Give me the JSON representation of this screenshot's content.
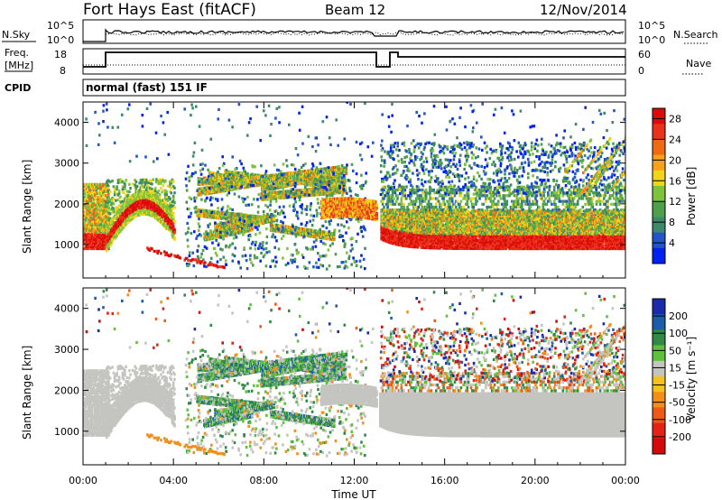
{
  "header": {
    "station": "Fort Hays East (fitACF)",
    "beam": "Beam 12",
    "date": "12/Nov/2014"
  },
  "top_panels": {
    "nsky_label": "N.Sky",
    "nsky_ticks": [
      "10^5",
      "10^0"
    ],
    "nsearch_label": "N.Search",
    "nsearch_ticks": [
      "10^5",
      "10^0"
    ],
    "freq_label_line1": "Freq.",
    "freq_label_line2": "[MHz]",
    "freq_ticks": [
      "18",
      "8"
    ],
    "nave_label": "Nave",
    "nave_ticks": [
      "60",
      "0"
    ],
    "cpid_label": "CPID",
    "cpid_value": "normal (fast) 151 IF"
  },
  "colors": {
    "power_scale": [
      "#0022ee",
      "#2355c8",
      "#3d8a6a",
      "#4ea04a",
      "#7fc23c",
      "#f2d41a",
      "#f5a21a",
      "#f06a14",
      "#e8331a",
      "#dd0a0a"
    ],
    "velocity_scale": [
      "#1a2aa8",
      "#1d5ca8",
      "#2e8a46",
      "#5ec03c",
      "#c4c4c0",
      "#f5c21c",
      "#f28f1c",
      "#ed5a18",
      "#e42316",
      "#d40a0a"
    ]
  },
  "chart_data": [
    {
      "type": "heatmap",
      "panel": "power",
      "ylabel": "Slant Range [km]",
      "xlabel": "Time UT",
      "x_ticks": [
        "00:00",
        "04:00",
        "08:00",
        "12:00",
        "16:00",
        "20:00",
        "00:00"
      ],
      "y_ticks": [
        1000,
        2000,
        3000,
        4000
      ],
      "ylim": [
        180,
        4500
      ],
      "xlim_hours": [
        0,
        24
      ],
      "colorbar_label": "Power [dB]",
      "colorbar_ticks": [
        4,
        8,
        12,
        16,
        20,
        24,
        28
      ],
      "colorbar_range": [
        0,
        30
      ],
      "features": [
        {
          "kind": "band",
          "t": [
            0.0,
            1.1
          ],
          "range_km": [
            900,
            2500
          ],
          "level": "strong"
        },
        {
          "kind": "arc",
          "t": [
            1.0,
            4.0
          ],
          "range_km": [
            900,
            2100
          ],
          "level": "strong"
        },
        {
          "kind": "streaks",
          "t": [
            5.0,
            11.5
          ],
          "range_km": [
            500,
            2800
          ],
          "level": "mixed"
        },
        {
          "kind": "arc",
          "t": [
            10.5,
            13.0
          ],
          "range_km": [
            1700,
            2400
          ],
          "level": "moderate"
        },
        {
          "kind": "gap",
          "t": [
            13.0,
            13.1
          ]
        },
        {
          "kind": "band",
          "t": [
            13.1,
            24.0
          ],
          "range_km": [
            900,
            1800
          ],
          "level": "strong"
        },
        {
          "kind": "diffuse",
          "t": [
            13.1,
            24.0
          ],
          "range_km": [
            1800,
            3300
          ],
          "level": "weak"
        }
      ]
    },
    {
      "type": "heatmap",
      "panel": "velocity",
      "ylabel": "Slant Range [km]",
      "xlabel": "Time UT",
      "x_ticks": [
        "00:00",
        "04:00",
        "08:00",
        "12:00",
        "16:00",
        "20:00",
        "00:00"
      ],
      "y_ticks": [
        1000,
        2000,
        3000,
        4000
      ],
      "ylim": [
        180,
        4500
      ],
      "xlim_hours": [
        0,
        24
      ],
      "colorbar_label": "Velocity [m s⁻¹]",
      "colorbar_ticks": [
        200,
        100,
        50,
        15,
        -15,
        -50,
        -100,
        -200
      ],
      "colorbar_range": [
        -250,
        250
      ],
      "features": [
        {
          "kind": "ground_scatter",
          "t": [
            0.0,
            4.0
          ],
          "range_km": [
            900,
            2600
          ],
          "velocity": "near 0"
        },
        {
          "kind": "streaks",
          "t": [
            5.0,
            11.5
          ],
          "range_km": [
            500,
            2800
          ],
          "velocity": "positive 15-100"
        },
        {
          "kind": "ground_scatter",
          "t": [
            13.1,
            24.0
          ],
          "range_km": [
            850,
            2000
          ],
          "velocity": "near 0"
        },
        {
          "kind": "scattered",
          "t": [
            13.1,
            24.0
          ],
          "range_km": [
            1800,
            3400
          ],
          "velocity": "mixed"
        }
      ]
    }
  ]
}
